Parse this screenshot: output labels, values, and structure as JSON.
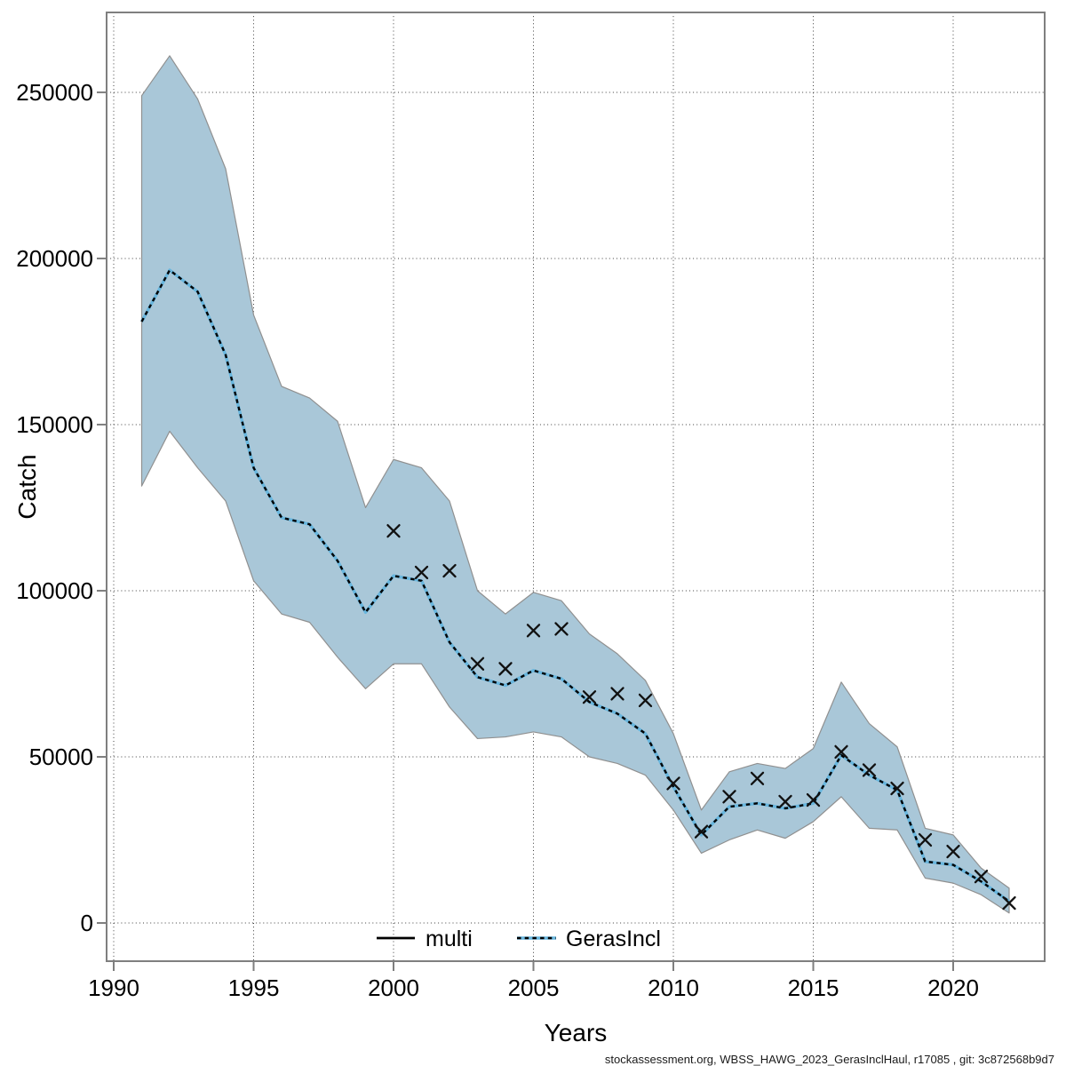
{
  "footer": {
    "text": "stockassessment.org, WBSS_HAWG_2023_GerasInclHaul, r17085 , git: 3c872568b9d7"
  },
  "chart_data": {
    "type": "line",
    "title": "",
    "xlabel": "Years",
    "ylabel": "Catch",
    "xlim": [
      1989.7,
      2023.3
    ],
    "ylim": [
      0,
      272000
    ],
    "x_ticks": [
      1990,
      1995,
      2000,
      2005,
      2010,
      2015,
      2020
    ],
    "y_ticks": [
      0,
      50000,
      100000,
      150000,
      200000,
      250000
    ],
    "grid": true,
    "legend_position": "bottom-center-inside",
    "colors": {
      "band_fill": "#a9c7d8",
      "band_edge": "#909090",
      "line_blue": "#68b6de",
      "line_dash": "#000000",
      "marker": "#111111",
      "frame": "#7f7f7f",
      "grid": "#3f3f3f",
      "text": "#000000"
    },
    "series": [
      {
        "name": "multi",
        "type": "scatter-x",
        "x": [
          2000,
          2001,
          2002,
          2003,
          2004,
          2005,
          2006,
          2007,
          2008,
          2009,
          2010,
          2011,
          2012,
          2013,
          2014,
          2015,
          2016,
          2017,
          2018,
          2019,
          2020,
          2021,
          2022
        ],
        "y": [
          118000,
          105500,
          106000,
          78000,
          76500,
          88000,
          88500,
          68000,
          69000,
          67000,
          42000,
          27500,
          38000,
          43500,
          36500,
          37000,
          51500,
          46000,
          40500,
          25000,
          21500,
          14000,
          6000
        ]
      },
      {
        "name": "GerasIncl",
        "type": "line-dashed-with-band",
        "x": [
          1991,
          1992,
          1993,
          1994,
          1995,
          1996,
          1997,
          1998,
          1999,
          2000,
          2001,
          2002,
          2003,
          2004,
          2005,
          2006,
          2007,
          2008,
          2009,
          2010,
          2011,
          2012,
          2013,
          2014,
          2015,
          2016,
          2017,
          2018,
          2019,
          2020,
          2021,
          2022
        ],
        "y": [
          181000,
          196500,
          190000,
          171000,
          137000,
          122000,
          120000,
          109000,
          93500,
          104500,
          103000,
          84500,
          74000,
          71500,
          76000,
          73500,
          66500,
          63000,
          57000,
          41000,
          26500,
          35000,
          36000,
          34500,
          36000,
          50500,
          44500,
          40000,
          18500,
          17500,
          12500,
          6500
        ],
        "band_upper": [
          249000,
          261000,
          248000,
          227000,
          183000,
          161500,
          158000,
          151000,
          125000,
          139500,
          137000,
          127000,
          100000,
          93000,
          99500,
          97000,
          87000,
          81000,
          73000,
          57000,
          34000,
          45500,
          48000,
          46500,
          52500,
          72500,
          60000,
          53000,
          28500,
          26500,
          16500,
          10500
        ],
        "band_lower": [
          131500,
          148000,
          137000,
          127000,
          103000,
          93000,
          90500,
          80000,
          70500,
          78000,
          78000,
          65000,
          55500,
          56000,
          57500,
          56000,
          50000,
          48000,
          44500,
          34000,
          21000,
          25000,
          28000,
          25500,
          30500,
          38000,
          28500,
          28000,
          13500,
          12000,
          8500,
          3000
        ]
      }
    ],
    "legend": [
      {
        "label": "multi",
        "style": "solid",
        "color": "#000000"
      },
      {
        "label": "GerasIncl",
        "style": "dashed",
        "color": "#68b6de"
      }
    ]
  }
}
